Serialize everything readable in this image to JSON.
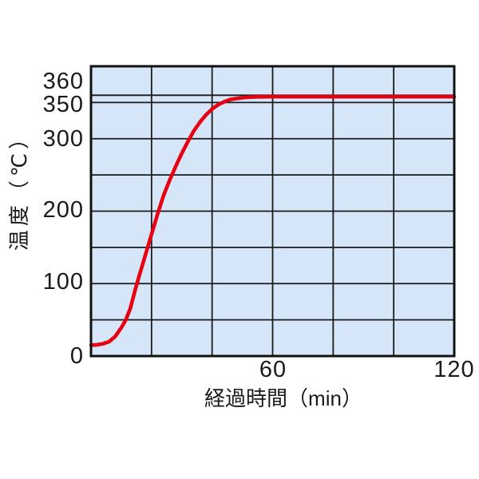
{
  "chart_data": {
    "type": "line",
    "title": "",
    "xlabel": "経過時間（min）",
    "ylabel": "温度（℃）",
    "xlim": [
      0,
      120
    ],
    "ylim": [
      0,
      400
    ],
    "grid": true,
    "x_gridlines": [
      20,
      40,
      60,
      80,
      100
    ],
    "y_gridlines": [
      50,
      100,
      150,
      200,
      250,
      300,
      350,
      360
    ],
    "x_tick_labels": [
      {
        "value": 60,
        "label": "60"
      },
      {
        "value": 120,
        "label": "120"
      }
    ],
    "y_tick_labels": [
      {
        "value": 360,
        "label": "360"
      },
      {
        "value": 350,
        "label": "350"
      },
      {
        "value": 300,
        "label": "300"
      },
      {
        "value": 200,
        "label": "200"
      },
      {
        "value": 100,
        "label": "100"
      },
      {
        "value": 0,
        "label": "0"
      }
    ],
    "series": [
      {
        "name": "温度",
        "color": "#e60012",
        "points": [
          [
            0,
            15
          ],
          [
            2,
            15.5
          ],
          [
            4,
            17
          ],
          [
            6,
            20
          ],
          [
            8,
            27
          ],
          [
            10,
            39
          ],
          [
            11.5,
            50
          ],
          [
            13,
            66
          ],
          [
            14.5,
            90
          ],
          [
            16,
            112
          ],
          [
            18,
            140
          ],
          [
            20,
            168
          ],
          [
            22,
            196
          ],
          [
            24,
            222
          ],
          [
            26,
            243
          ],
          [
            28,
            262
          ],
          [
            30,
            280
          ],
          [
            32,
            296
          ],
          [
            34,
            311
          ],
          [
            36,
            323
          ],
          [
            38,
            333
          ],
          [
            40,
            341
          ],
          [
            42,
            347
          ],
          [
            44,
            351
          ],
          [
            46,
            354
          ],
          [
            48,
            355.5
          ],
          [
            51,
            357
          ],
          [
            55,
            357.8
          ],
          [
            60,
            358
          ],
          [
            70,
            358
          ],
          [
            85,
            358
          ],
          [
            100,
            358
          ],
          [
            120,
            358
          ]
        ]
      }
    ],
    "colors": {
      "plot_background": "#d4e6f7",
      "grid_line": "#1b1b1b",
      "frame": "#111111",
      "curve": "#e60012",
      "text": "#1a1a1a"
    }
  }
}
